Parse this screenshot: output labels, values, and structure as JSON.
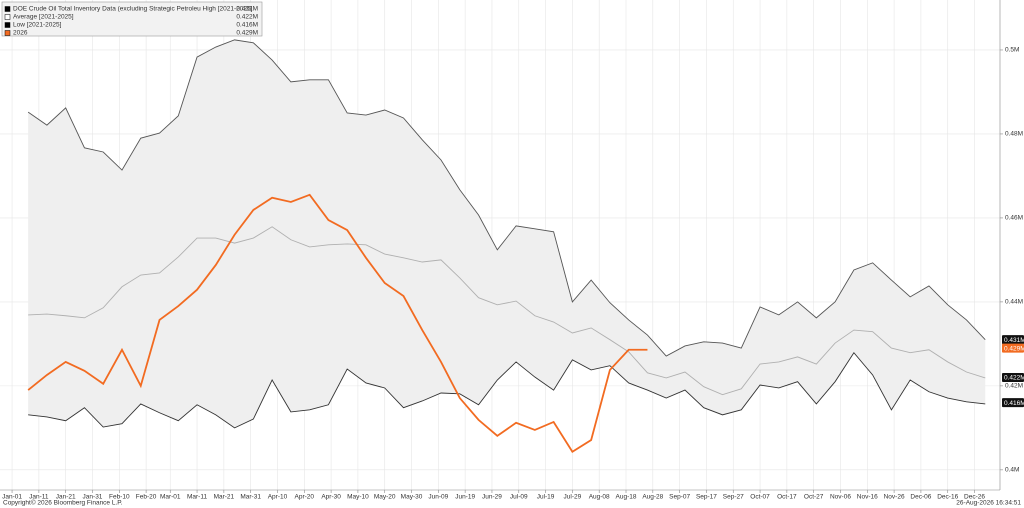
{
  "chart_data": {
    "type": "line",
    "x": [
      6,
      13,
      20,
      27,
      34,
      41,
      48,
      55,
      62,
      69,
      76,
      83,
      90,
      97,
      104,
      111,
      118,
      125,
      132,
      139,
      146,
      153,
      160,
      167,
      174,
      181,
      188,
      195,
      202,
      209,
      216,
      223,
      230,
      237,
      244,
      251,
      258,
      265,
      272,
      279,
      286,
      293,
      300,
      307,
      314,
      321,
      328,
      335,
      342,
      349,
      356,
      363
    ],
    "xlim": [
      -4.5,
      368.5
    ],
    "xticks": [
      {
        "value": 0,
        "label": "Jan-01"
      },
      {
        "value": 10,
        "label": "Jan-11"
      },
      {
        "value": 20,
        "label": "Jan-21"
      },
      {
        "value": 30,
        "label": "Jan-31"
      },
      {
        "value": 40,
        "label": "Feb-10"
      },
      {
        "value": 50,
        "label": "Feb-20"
      },
      {
        "value": 59,
        "label": "Mar-01"
      },
      {
        "value": 69,
        "label": "Mar-11"
      },
      {
        "value": 79,
        "label": "Mar-21"
      },
      {
        "value": 89,
        "label": "Mar-31"
      },
      {
        "value": 99,
        "label": "Apr-10"
      },
      {
        "value": 109,
        "label": "Apr-20"
      },
      {
        "value": 119,
        "label": "Apr-30"
      },
      {
        "value": 129,
        "label": "May-10"
      },
      {
        "value": 139,
        "label": "May-20"
      },
      {
        "value": 149,
        "label": "May-30"
      },
      {
        "value": 159,
        "label": "Jun-09"
      },
      {
        "value": 169,
        "label": "Jun-19"
      },
      {
        "value": 179,
        "label": "Jun-29"
      },
      {
        "value": 189,
        "label": "Jul-09"
      },
      {
        "value": 199,
        "label": "Jul-19"
      },
      {
        "value": 209,
        "label": "Jul-29"
      },
      {
        "value": 219,
        "label": "Aug-08"
      },
      {
        "value": 229,
        "label": "Aug-18"
      },
      {
        "value": 239,
        "label": "Aug-28"
      },
      {
        "value": 249,
        "label": "Sep-07"
      },
      {
        "value": 259,
        "label": "Sep-17"
      },
      {
        "value": 269,
        "label": "Sep-27"
      },
      {
        "value": 279,
        "label": "Oct-07"
      },
      {
        "value": 289,
        "label": "Oct-17"
      },
      {
        "value": 299,
        "label": "Oct-27"
      },
      {
        "value": 309,
        "label": "Nov-06"
      },
      {
        "value": 319,
        "label": "Nov-16"
      },
      {
        "value": 329,
        "label": "Nov-26"
      },
      {
        "value": 339,
        "label": "Dec-06"
      },
      {
        "value": 349,
        "label": "Dec-16"
      },
      {
        "value": 359,
        "label": "Dec-26"
      }
    ],
    "ylim": [
      0.3952,
      0.5119
    ],
    "yticks": [
      {
        "value": 0.4,
        "label": "0.4M"
      },
      {
        "value": 0.42,
        "label": "0.42M"
      },
      {
        "value": 0.44,
        "label": "0.44M"
      },
      {
        "value": 0.46,
        "label": "0.46M"
      },
      {
        "value": 0.48,
        "label": "0.48M"
      },
      {
        "value": 0.5,
        "label": "0.5M"
      }
    ],
    "grid": true,
    "band_color": "#efefef",
    "series": [
      {
        "name": "DOE Crude Oil Total Inventory Data (excluding Strategic Petroleu High [2021-2025]",
        "color": "#555555",
        "legend_color": "#000000",
        "last": {
          "value": 0.431,
          "label": "0.431M"
        },
        "values": [
          0.4852,
          0.4821,
          0.4862,
          0.4767,
          0.4757,
          0.4714,
          0.479,
          0.4802,
          0.4843,
          0.4983,
          0.5007,
          0.5024,
          0.5017,
          0.4976,
          0.4924,
          0.4929,
          0.4929,
          0.485,
          0.4845,
          0.4857,
          0.4838,
          0.4786,
          0.4738,
          0.4667,
          0.4607,
          0.4524,
          0.4581,
          0.4574,
          0.4567,
          0.44,
          0.4452,
          0.4398,
          0.4357,
          0.4321,
          0.4271,
          0.4295,
          0.4305,
          0.4302,
          0.429,
          0.4388,
          0.4369,
          0.44,
          0.4362,
          0.44,
          0.4476,
          0.4493,
          0.4452,
          0.4412,
          0.4438,
          0.4393,
          0.4357,
          0.431
        ]
      },
      {
        "name": "Average [2021-2025]",
        "color": "#b0b0b0",
        "legend_color": "#ffffff",
        "last": {
          "value": 0.422,
          "label": "0.422M"
        },
        "values": [
          0.4369,
          0.4371,
          0.4367,
          0.4362,
          0.4386,
          0.4436,
          0.4464,
          0.4469,
          0.4507,
          0.4552,
          0.4552,
          0.454,
          0.4552,
          0.4579,
          0.4548,
          0.4531,
          0.4536,
          0.4538,
          0.4536,
          0.4514,
          0.4505,
          0.4495,
          0.45,
          0.4457,
          0.441,
          0.4393,
          0.4402,
          0.4367,
          0.4352,
          0.4326,
          0.4338,
          0.431,
          0.4281,
          0.4231,
          0.4219,
          0.4233,
          0.4198,
          0.4179,
          0.4193,
          0.4252,
          0.4257,
          0.4269,
          0.4252,
          0.4302,
          0.4333,
          0.4329,
          0.429,
          0.4279,
          0.4286,
          0.4257,
          0.4233,
          0.4219
        ]
      },
      {
        "name": "Low [2021-2025]",
        "color": "#333333",
        "legend_color": "#000000",
        "last": {
          "value": 0.416,
          "label": "0.416M"
        },
        "values": [
          0.4131,
          0.4126,
          0.4117,
          0.4148,
          0.4102,
          0.411,
          0.4157,
          0.4136,
          0.4117,
          0.4155,
          0.4131,
          0.41,
          0.4121,
          0.4214,
          0.4138,
          0.4143,
          0.4155,
          0.424,
          0.4207,
          0.4195,
          0.4148,
          0.4164,
          0.4183,
          0.4181,
          0.4155,
          0.4214,
          0.4257,
          0.4221,
          0.419,
          0.4262,
          0.4238,
          0.4248,
          0.4207,
          0.419,
          0.4171,
          0.419,
          0.4148,
          0.4131,
          0.4143,
          0.4202,
          0.4195,
          0.421,
          0.4157,
          0.421,
          0.4279,
          0.4226,
          0.4143,
          0.4214,
          0.4186,
          0.4171,
          0.4162,
          0.4157
        ]
      },
      {
        "name": "2026",
        "color": "#f26b21",
        "legend_color": "#f26b21",
        "last": {
          "value": 0.429,
          "label": "0.429M"
        },
        "values": [
          0.419,
          0.4226,
          0.4257,
          0.4236,
          0.4205,
          0.4286,
          0.42,
          0.4357,
          0.439,
          0.4429,
          0.4488,
          0.456,
          0.4619,
          0.4648,
          0.4638,
          0.4655,
          0.4595,
          0.4571,
          0.4505,
          0.4445,
          0.4414,
          0.4333,
          0.4257,
          0.4171,
          0.4119,
          0.4081,
          0.4112,
          0.4095,
          0.4114,
          0.4043,
          0.4071,
          0.4238,
          0.4286,
          0.4286,
          null,
          null,
          null,
          null,
          null,
          null,
          null,
          null,
          null,
          null,
          null,
          null,
          null,
          null,
          null,
          null,
          null,
          null
        ]
      }
    ]
  },
  "footer": {
    "copyright": "Copyright© 2026 Bloomberg Finance L.P.",
    "timestamp": "26-Aug-2026 16:34:51"
  }
}
